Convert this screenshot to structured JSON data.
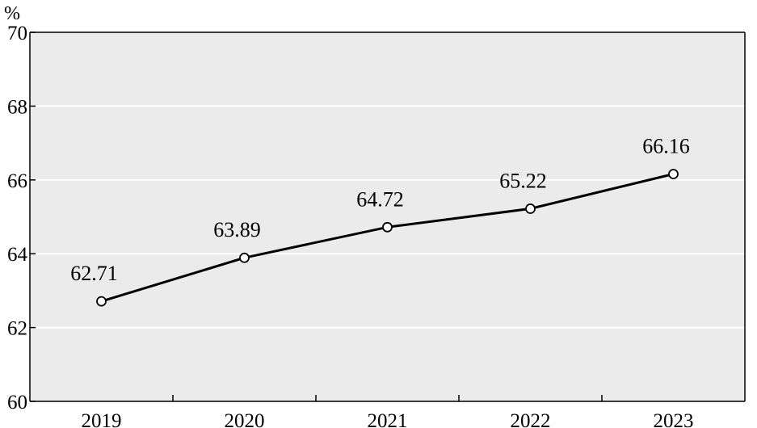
{
  "chart_data": {
    "type": "line",
    "title": "",
    "xlabel": "",
    "ylabel": "%",
    "categories": [
      "2019",
      "2020",
      "2021",
      "2022",
      "2023"
    ],
    "series": [
      {
        "values": [
          62.71,
          63.89,
          64.72,
          65.22,
          66.16
        ]
      }
    ],
    "data_labels": [
      "62.71",
      "63.89",
      "64.72",
      "65.22",
      "66.16"
    ],
    "ylim": [
      60,
      70
    ],
    "yticks": [
      60,
      62,
      64,
      66,
      68,
      70
    ],
    "ytick_labels": [
      "60",
      "62",
      "64",
      "66",
      "68",
      "70"
    ],
    "grid": true,
    "legend": "none",
    "markers": "open-circle",
    "colors": {
      "plot_background": "#ebebeb",
      "gridline": "#ffffff",
      "line": "#000000",
      "marker_fill": "#ffffff"
    }
  }
}
